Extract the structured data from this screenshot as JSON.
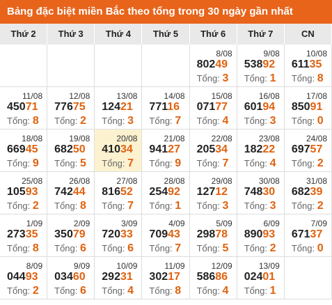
{
  "title": "Bảng đặc biệt miền Bắc theo tổng trong 30 ngày gần nhất",
  "headers": [
    "Thứ 2",
    "Thứ 3",
    "Thứ 4",
    "Thứ 5",
    "Thứ 6",
    "Thứ 7",
    "CN"
  ],
  "total_label": "Tổng:",
  "highlight": "20/08",
  "rows": [
    [
      null,
      null,
      null,
      null,
      {
        "date": "8/08",
        "head": "802",
        "tail": "49",
        "total": 3
      },
      {
        "date": "9/08",
        "head": "538",
        "tail": "92",
        "total": 1
      },
      {
        "date": "10/08",
        "head": "611",
        "tail": "35",
        "total": 8
      }
    ],
    [
      {
        "date": "11/08",
        "head": "450",
        "tail": "71",
        "total": 8
      },
      {
        "date": "12/08",
        "head": "776",
        "tail": "75",
        "total": 2
      },
      {
        "date": "13/08",
        "head": "124",
        "tail": "21",
        "total": 3
      },
      {
        "date": "14/08",
        "head": "771",
        "tail": "16",
        "total": 7
      },
      {
        "date": "15/08",
        "head": "071",
        "tail": "77",
        "total": 4
      },
      {
        "date": "16/08",
        "head": "601",
        "tail": "94",
        "total": 3
      },
      {
        "date": "17/08",
        "head": "850",
        "tail": "91",
        "total": 0
      }
    ],
    [
      {
        "date": "18/08",
        "head": "669",
        "tail": "45",
        "total": 9
      },
      {
        "date": "19/08",
        "head": "682",
        "tail": "50",
        "total": 5
      },
      {
        "date": "20/08",
        "head": "410",
        "tail": "34",
        "total": 7
      },
      {
        "date": "21/08",
        "head": "941",
        "tail": "27",
        "total": 9
      },
      {
        "date": "22/08",
        "head": "205",
        "tail": "34",
        "total": 7
      },
      {
        "date": "23/08",
        "head": "182",
        "tail": "22",
        "total": 4
      },
      {
        "date": "24/08",
        "head": "697",
        "tail": "57",
        "total": 2
      }
    ],
    [
      {
        "date": "25/08",
        "head": "105",
        "tail": "93",
        "total": 2
      },
      {
        "date": "26/08",
        "head": "742",
        "tail": "44",
        "total": 8
      },
      {
        "date": "27/08",
        "head": "816",
        "tail": "52",
        "total": 7
      },
      {
        "date": "28/08",
        "head": "254",
        "tail": "92",
        "total": 1
      },
      {
        "date": "29/08",
        "head": "127",
        "tail": "12",
        "total": 3
      },
      {
        "date": "30/08",
        "head": "748",
        "tail": "30",
        "total": 3
      },
      {
        "date": "31/08",
        "head": "682",
        "tail": "39",
        "total": 2
      }
    ],
    [
      {
        "date": "1/09",
        "head": "273",
        "tail": "35",
        "total": 8
      },
      {
        "date": "2/09",
        "head": "350",
        "tail": "79",
        "total": 6
      },
      {
        "date": "3/09",
        "head": "720",
        "tail": "33",
        "total": 6
      },
      {
        "date": "4/09",
        "head": "709",
        "tail": "43",
        "total": 7
      },
      {
        "date": "5/09",
        "head": "298",
        "tail": "78",
        "total": 5
      },
      {
        "date": "6/09",
        "head": "890",
        "tail": "93",
        "total": 2
      },
      {
        "date": "7/09",
        "head": "671",
        "tail": "37",
        "total": 0
      }
    ],
    [
      {
        "date": "8/09",
        "head": "044",
        "tail": "93",
        "total": 2
      },
      {
        "date": "9/09",
        "head": "034",
        "tail": "60",
        "total": 6
      },
      {
        "date": "10/09",
        "head": "292",
        "tail": "31",
        "total": 4
      },
      {
        "date": "11/09",
        "head": "302",
        "tail": "17",
        "total": 8
      },
      {
        "date": "12/09",
        "head": "586",
        "tail": "86",
        "total": 4
      },
      {
        "date": "13/09",
        "head": "024",
        "tail": "01",
        "total": 1
      },
      null
    ]
  ]
}
